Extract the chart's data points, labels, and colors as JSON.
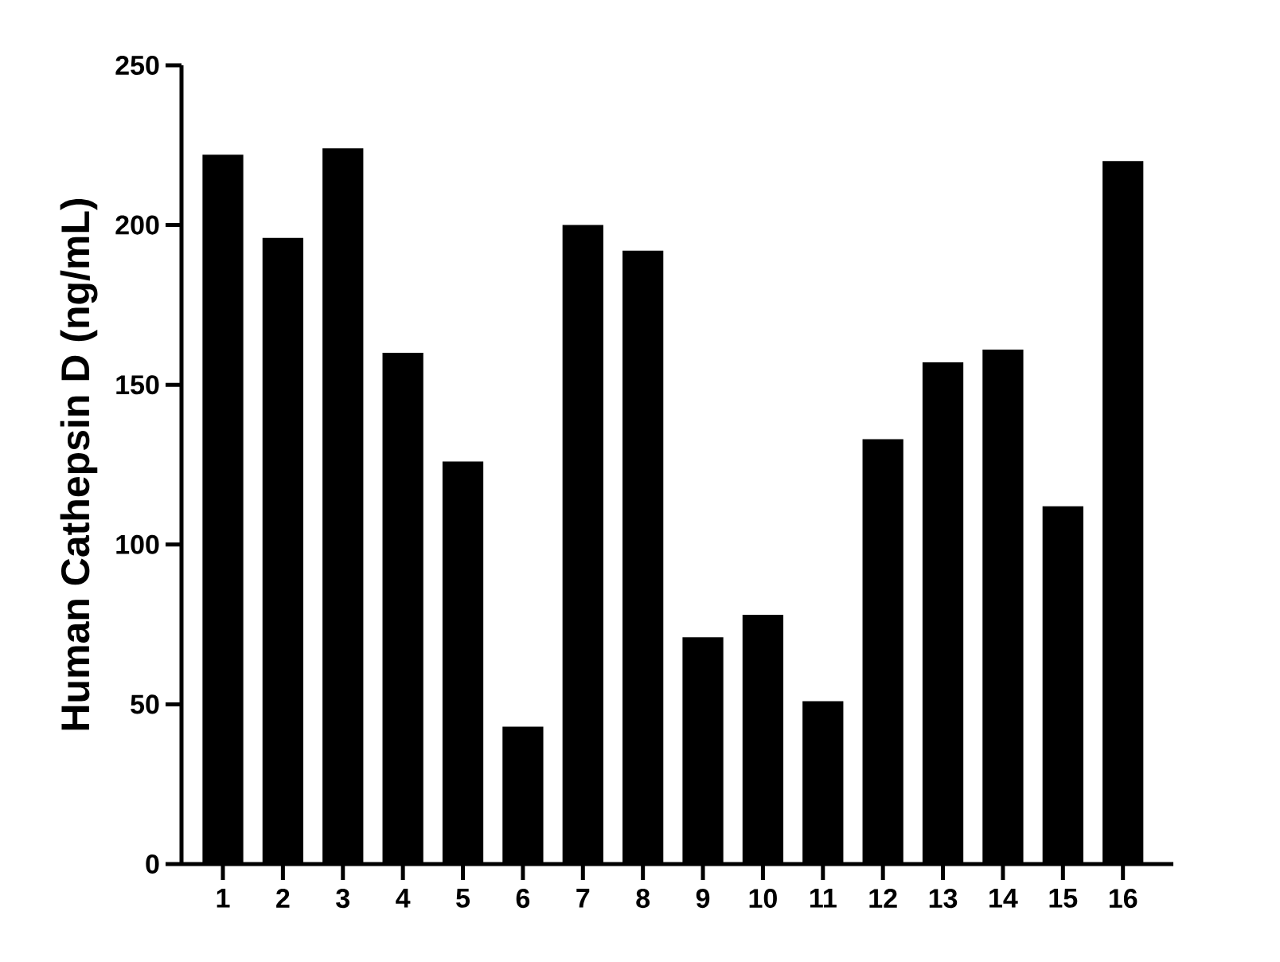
{
  "chart_data": {
    "type": "bar",
    "ylabel": "Human Cathepsin D (ng/mL)",
    "categories": [
      "1",
      "2",
      "3",
      "4",
      "5",
      "6",
      "7",
      "8",
      "9",
      "10",
      "11",
      "12",
      "13",
      "14",
      "15",
      "16"
    ],
    "values": [
      222,
      196,
      224,
      160,
      126,
      43,
      200,
      192,
      71,
      78,
      51,
      133,
      157,
      161,
      112,
      220
    ],
    "color": "#000000",
    "ylim": [
      0,
      250
    ],
    "yticks": [
      0,
      50,
      100,
      150,
      200,
      250
    ]
  }
}
